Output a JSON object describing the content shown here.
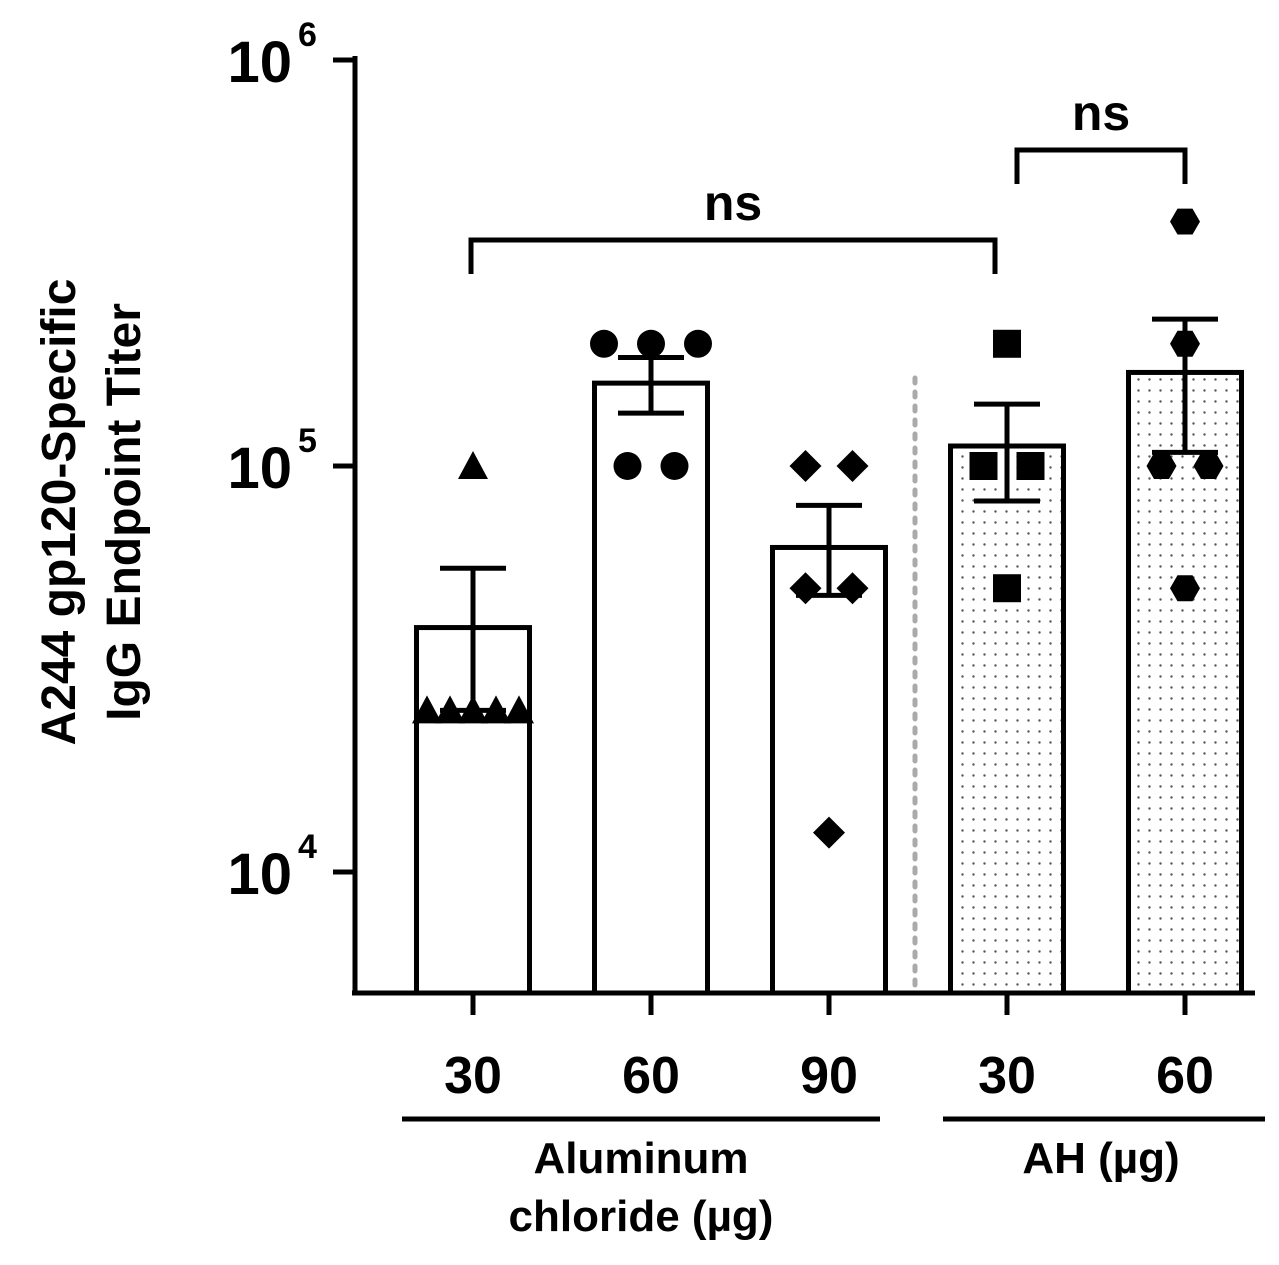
{
  "chart_data": {
    "type": "bar",
    "ylabel_lines": [
      "A244 gp120-Specific",
      "IgG Endpoint Titer"
    ],
    "y_scale": "log",
    "ylim": [
      5000,
      1000000
    ],
    "y_ticks": [
      {
        "value": 10000,
        "base": "10",
        "exp": "4"
      },
      {
        "value": 100000,
        "base": "10",
        "exp": "5"
      },
      {
        "value": 1000000,
        "base": "10",
        "exp": "6"
      }
    ],
    "categories": [
      "30",
      "60",
      "90",
      "30",
      "60"
    ],
    "groups": [
      {
        "label_lines": [
          "Aluminum",
          "chloride (µg)"
        ],
        "categories": [
          0,
          1,
          2
        ]
      },
      {
        "label_lines": [
          "AH (µg)"
        ],
        "categories": [
          3,
          4
        ]
      }
    ],
    "bars": [
      {
        "category": "30",
        "mean": 40000,
        "sem_low": 25000,
        "sem_high": 56000,
        "fill": "white",
        "marker": "triangle",
        "points": [
          100000,
          25000,
          25000,
          25000,
          25000,
          25000
        ]
      },
      {
        "category": "60",
        "mean": 160000,
        "sem_low": 135000,
        "sem_high": 185000,
        "fill": "white",
        "marker": "circle",
        "points": [
          200000,
          200000,
          200000,
          100000,
          100000
        ]
      },
      {
        "category": "90",
        "mean": 63000,
        "sem_low": 48000,
        "sem_high": 80000,
        "fill": "white",
        "marker": "diamond",
        "points": [
          100000,
          100000,
          50000,
          50000,
          12500
        ]
      },
      {
        "category": "30",
        "mean": 112000,
        "sem_low": 82000,
        "sem_high": 142000,
        "fill": "dotted",
        "marker": "square",
        "points": [
          200000,
          100000,
          100000,
          50000
        ]
      },
      {
        "category": "60",
        "mean": 170000,
        "sem_low": 108000,
        "sem_high": 230000,
        "fill": "dotted",
        "marker": "hexagon",
        "points": [
          400000,
          200000,
          100000,
          100000,
          50000
        ]
      }
    ],
    "significance": [
      {
        "from": 0,
        "to": 3,
        "label": "ns"
      },
      {
        "from": 3,
        "to": 4,
        "label": "ns"
      }
    ],
    "divider_between": [
      2,
      3
    ],
    "colors": {
      "bar_stroke": "#000000",
      "marker": "#000000",
      "divider": "#aaaaaa",
      "dots": "#555555"
    }
  }
}
